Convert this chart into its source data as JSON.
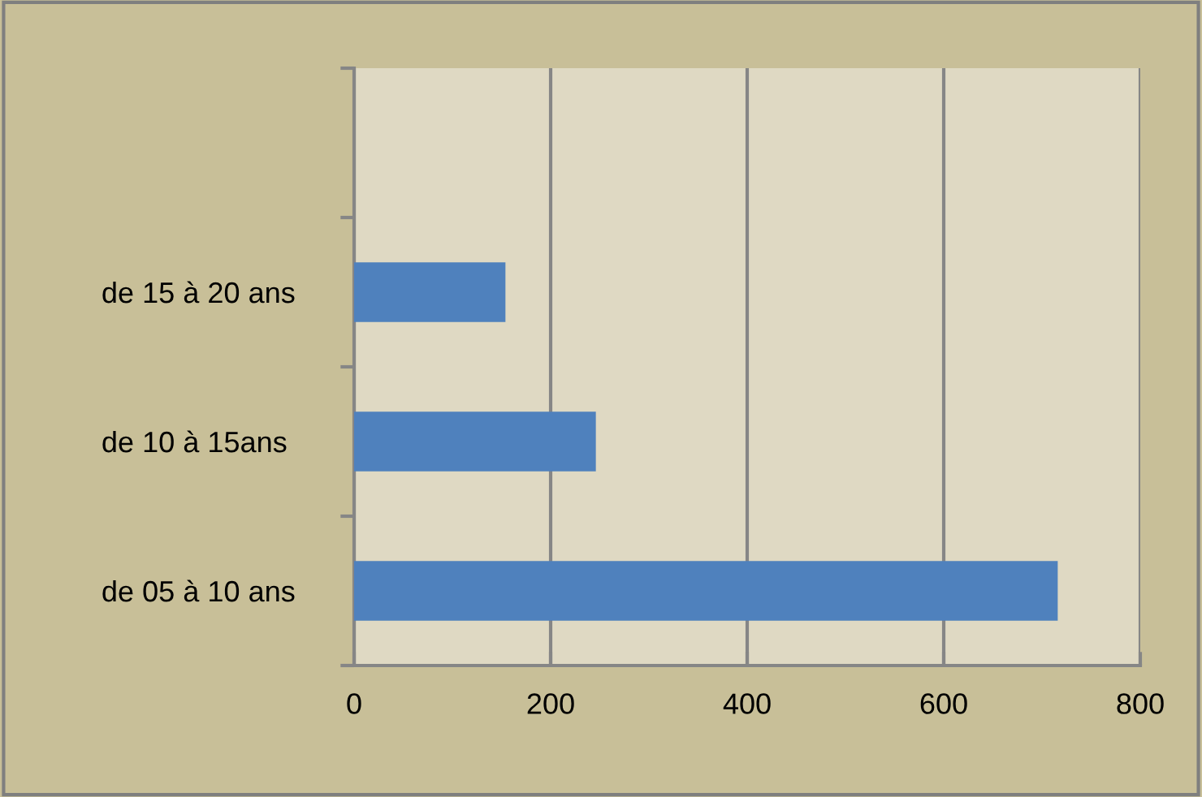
{
  "chart_data": {
    "type": "bar",
    "orientation": "horizontal",
    "categories": [
      null,
      "de 15 à 20 ans",
      "de 10 à 15ans ",
      "de 05 à 10 ans"
    ],
    "values": [
      null,
      154,
      246,
      716
    ],
    "color": "#4f81bd",
    "xlim": [
      0,
      800
    ],
    "xticks": [
      0,
      200,
      400,
      600,
      800
    ],
    "grid": "x",
    "legend": false
  }
}
